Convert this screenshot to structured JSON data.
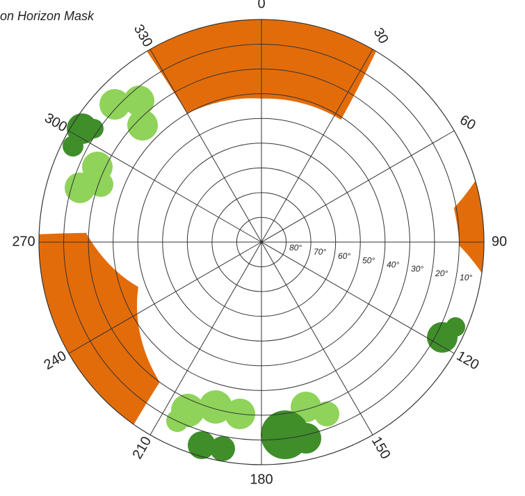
{
  "chart_data": {
    "type": "polar",
    "title": "on Horizon Mask",
    "xticks": [
      0,
      30,
      60,
      90,
      120,
      150,
      180,
      210,
      240,
      270,
      300,
      330
    ],
    "ylim": [
      0,
      90
    ],
    "yticks": [
      {
        "value": 80,
        "label": "80°"
      },
      {
        "value": 70,
        "label": "70°"
      },
      {
        "value": 60,
        "label": "60°"
      },
      {
        "value": 50,
        "label": "50°"
      },
      {
        "value": 40,
        "label": "40°"
      },
      {
        "value": 30,
        "label": "30°"
      },
      {
        "value": 20,
        "label": "20°"
      },
      {
        "value": 10,
        "label": "10°"
      }
    ],
    "series": [
      {
        "color": "#e36c0a",
        "x": [
          329,
          330,
          0,
          33,
          31
        ],
        "values": [
          0,
          30,
          32,
          31,
          0
        ]
      },
      {
        "color": "#e36c0a",
        "x": [
          74,
          80,
          91,
          98
        ],
        "values": [
          0,
          11,
          10,
          0
        ]
      },
      {
        "color": "#e36c0a",
        "x": [
          272,
          273,
          250,
          216,
          215
        ],
        "values": [
          0,
          19,
          37,
          20,
          0
        ]
      }
    ]
  }
}
